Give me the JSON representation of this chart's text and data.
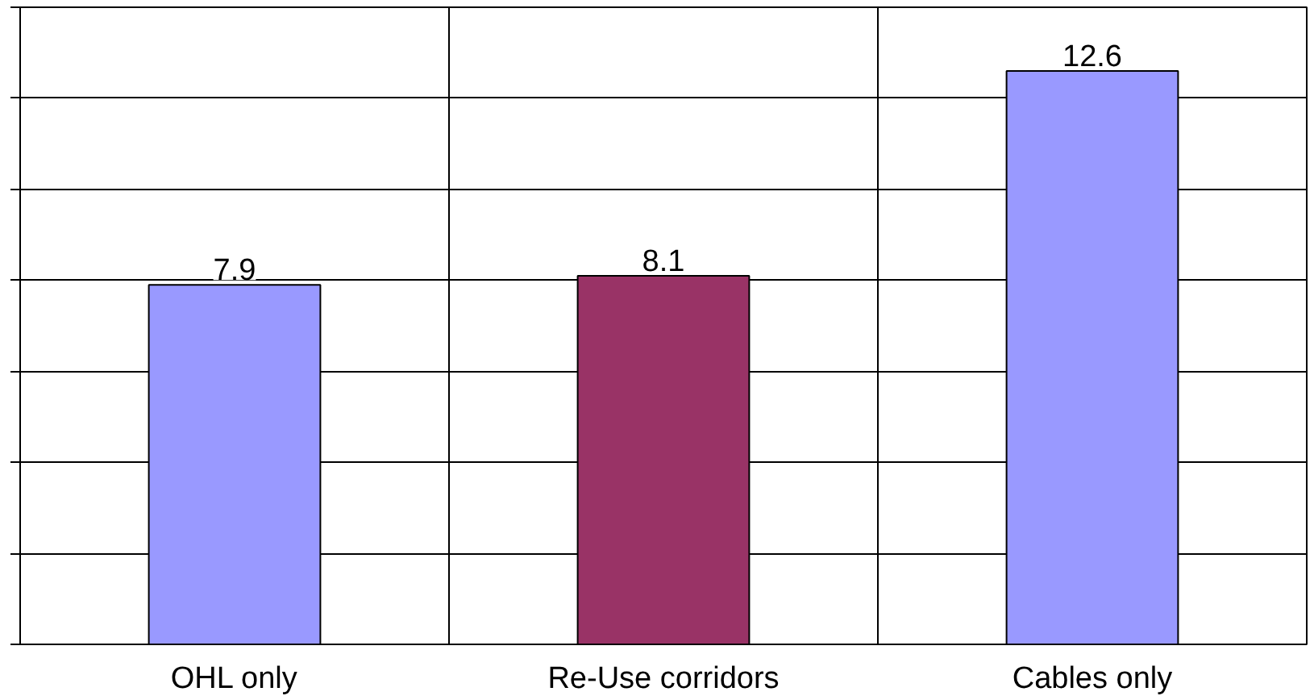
{
  "chart_data": {
    "type": "bar",
    "categories": [
      "OHL only",
      "Re-Use corridors",
      "Cables only"
    ],
    "values": [
      7.9,
      8.1,
      12.6
    ],
    "colors": [
      "#9999ff",
      "#993366",
      "#9999ff"
    ],
    "relative": false,
    "ylim": [
      0,
      14
    ],
    "yticks": [
      {
        "value": 0,
        "label": null
      },
      {
        "value": 2,
        "label": null
      },
      {
        "value": 4,
        "label": null
      },
      {
        "value": 6,
        "label": null
      },
      {
        "value": 8,
        "label": null
      },
      {
        "value": 10,
        "label": null
      },
      {
        "value": 12,
        "label": null
      },
      {
        "value": 14,
        "label": null
      }
    ],
    "data_labels": true,
    "grid": true,
    "tick_labels": "x"
  }
}
